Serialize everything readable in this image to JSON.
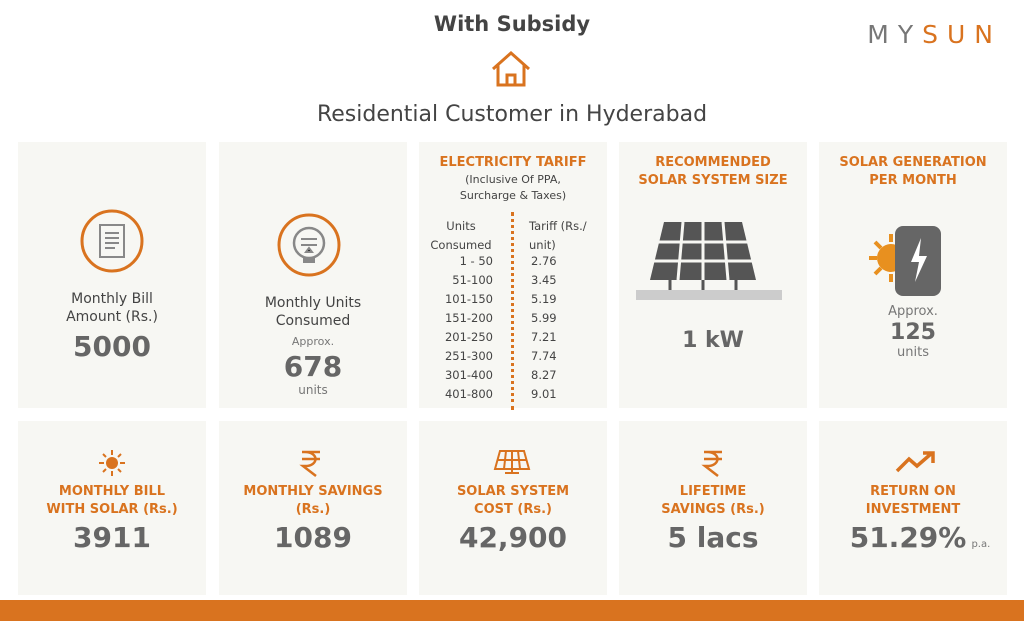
{
  "header": {
    "title": "With Subsidy",
    "logo": [
      "MY",
      "SUN"
    ],
    "subtitle": "Residential Customer in Hyderabad"
  },
  "top_cards": [
    {
      "label": "Monthly Bill Amount (Rs.)",
      "value": "5000"
    },
    {
      "label": "Monthly Units Consumed",
      "prefix": "Approx.",
      "value": "678",
      "unit": "units"
    },
    {
      "title": "ELECTRICITY TARIFF",
      "note": "(Inclusive Of PPA, Surcharge & Taxes)",
      "columns": [
        "Units Consumed",
        "Tariff (Rs./ unit)"
      ],
      "rows": [
        [
          "1 - 50",
          "2.76"
        ],
        [
          "51-100",
          "3.45"
        ],
        [
          "101-150",
          "5.19"
        ],
        [
          "151-200",
          "5.99"
        ],
        [
          "201-250",
          "7.21"
        ],
        [
          "251-300",
          "7.74"
        ],
        [
          "301-400",
          "8.27"
        ],
        [
          "401-800",
          "9.01"
        ]
      ]
    },
    {
      "title": "RECOMMENDED SOLAR SYSTEM SIZE",
      "value": "1 kW"
    },
    {
      "title": "SOLAR GENERATION PER MONTH",
      "prefix": "Approx.",
      "value": "125",
      "unit": "units"
    }
  ],
  "bottom_cards": [
    {
      "label": "MONTHLY BILL WITH SOLAR (Rs.)",
      "value": "3911"
    },
    {
      "label": "MONTHLY SAVINGS (Rs.)",
      "value": "1089"
    },
    {
      "label": "SOLAR SYSTEM COST (Rs.)",
      "value": "42,900"
    },
    {
      "label": "LIFETIME SAVINGS (Rs.)",
      "value": "5 lacs"
    },
    {
      "label": "RETURN ON INVESTMENT",
      "value": "51.29%",
      "suffix": "p.a."
    }
  ]
}
